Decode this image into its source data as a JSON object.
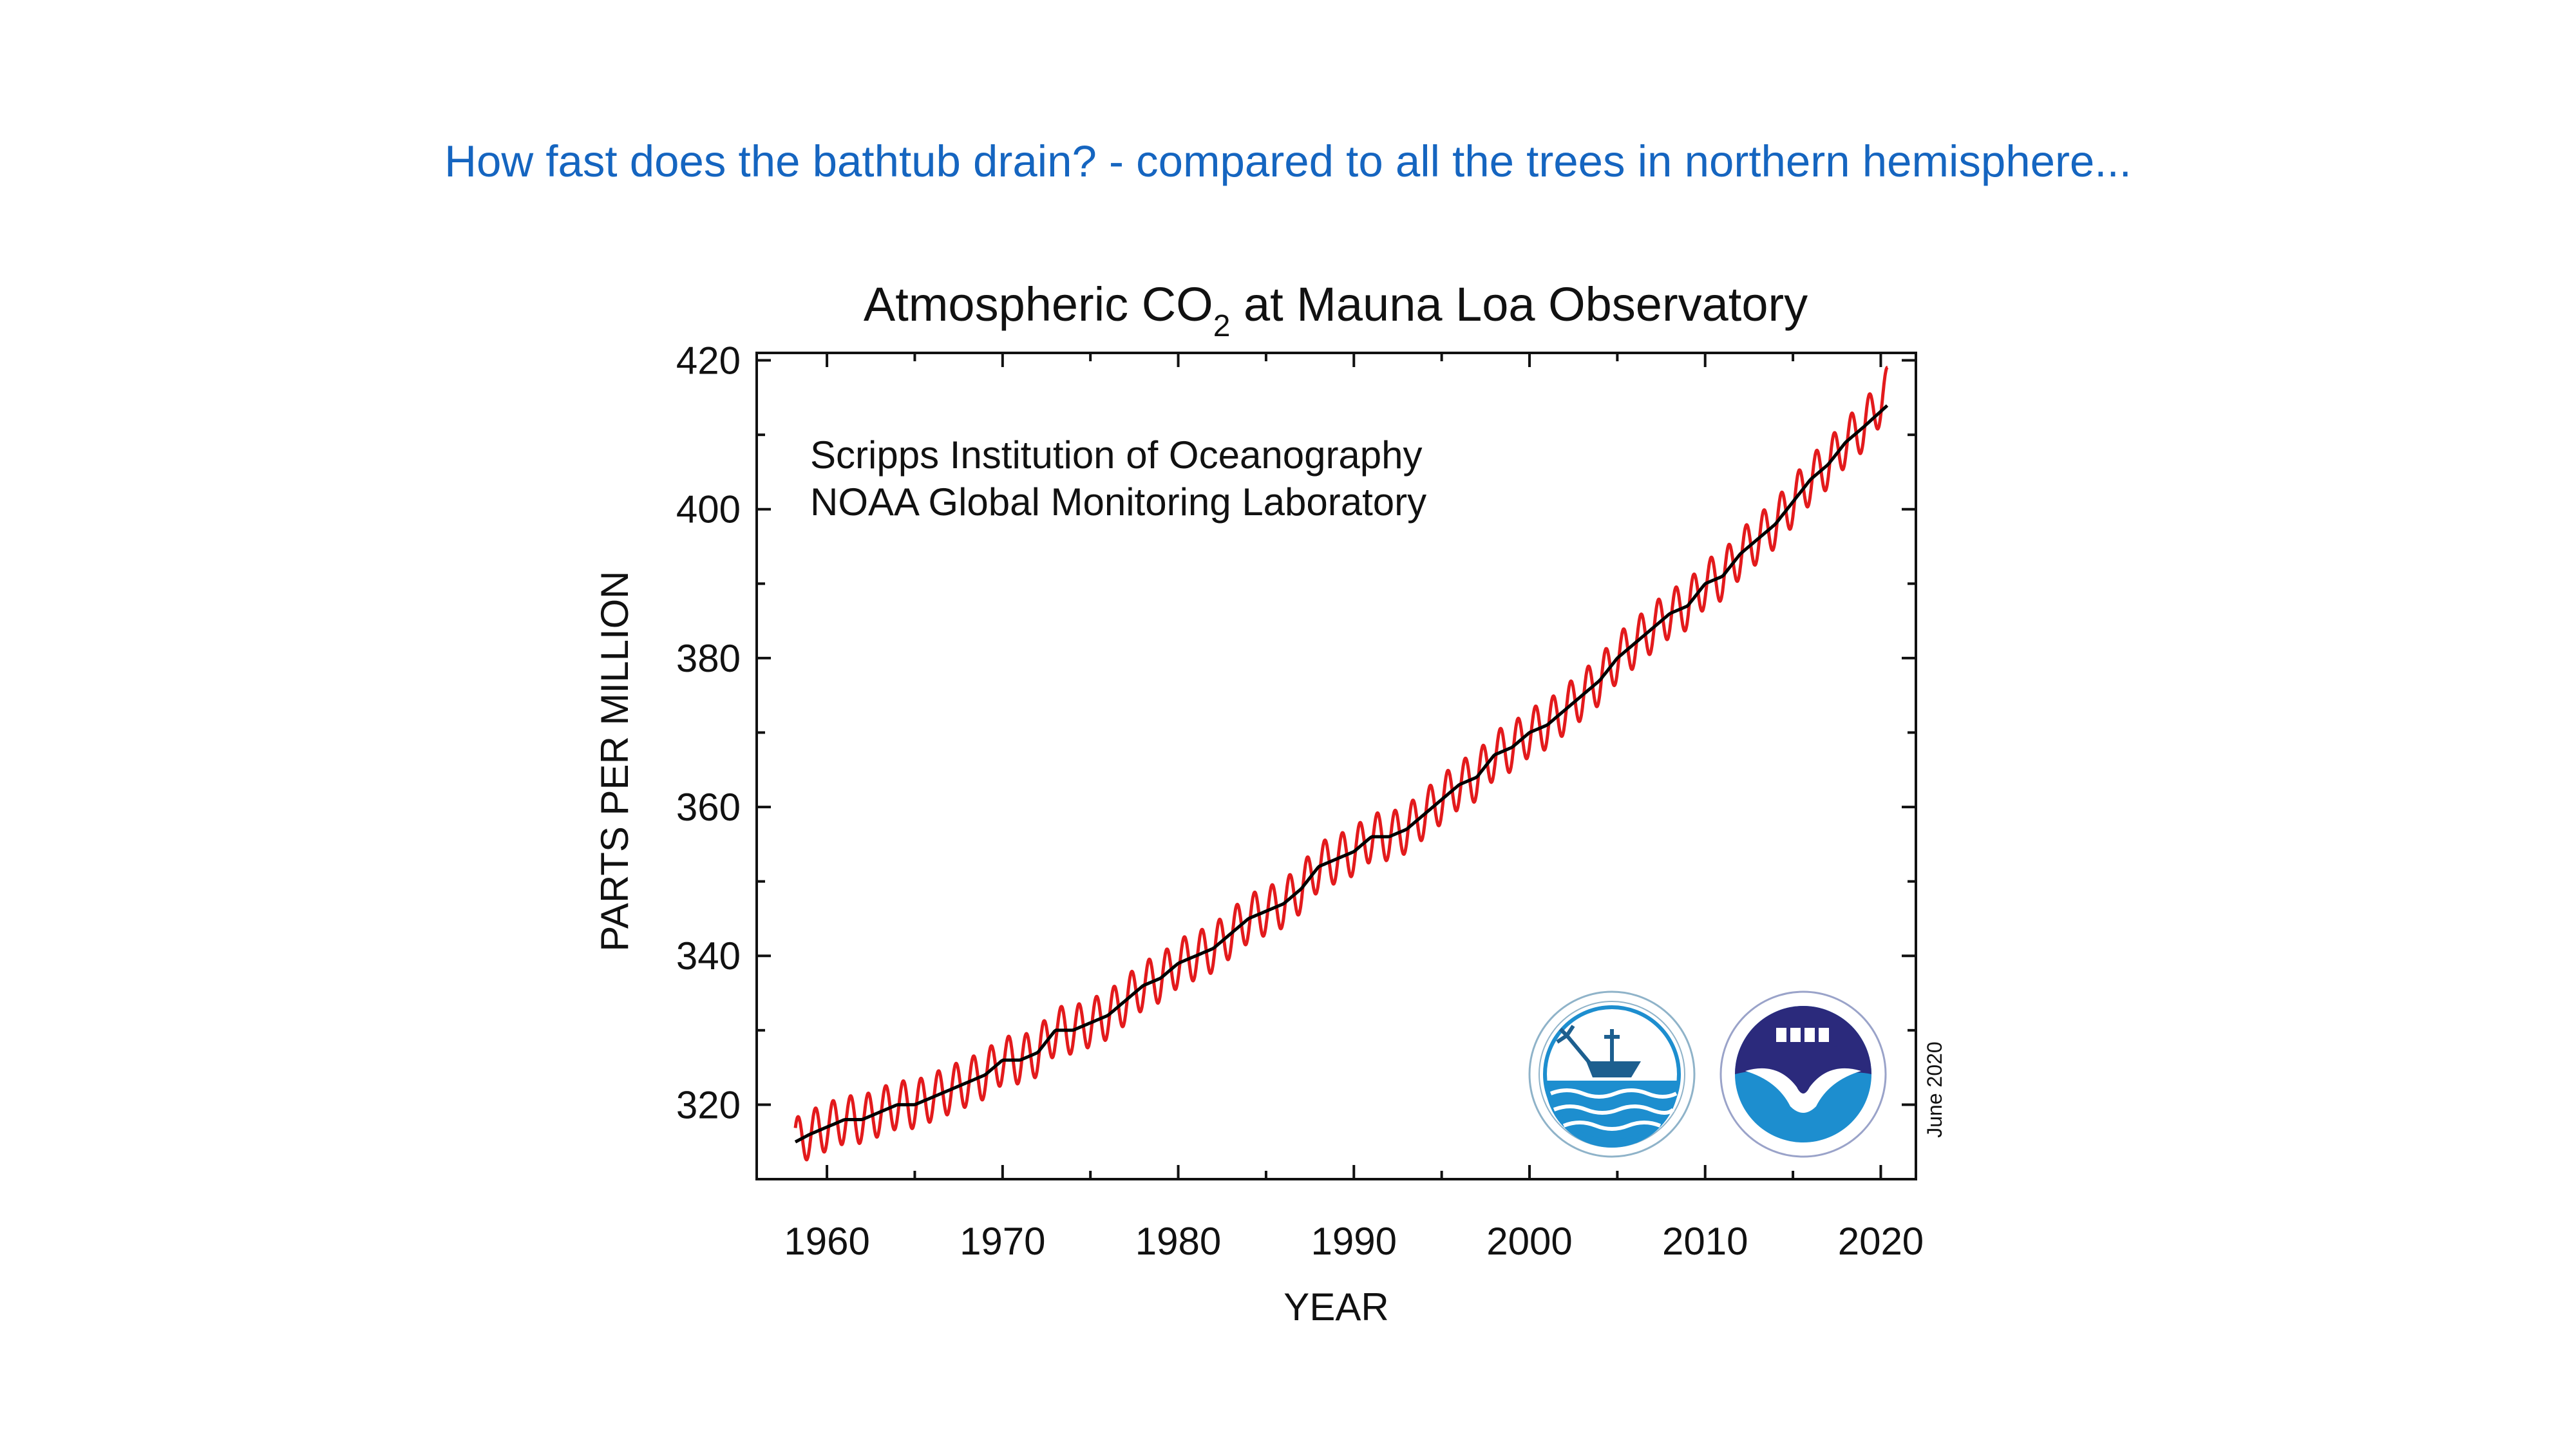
{
  "slide": {
    "heading": "How fast does the bathtub drain? - compared to all the trees in northern hemisphere..."
  },
  "colors": {
    "heading": "#1565c0",
    "monthly_series": "#e31a1c",
    "trend_series": "#000000",
    "scripps_logo": "#1d8ecf",
    "noaa_logo_top": "#2b2a7c",
    "noaa_logo_bottom": "#1d8ecf"
  },
  "icons": {
    "scripps_logo": "scripps-ucsd-seal-icon",
    "noaa_logo": "noaa-seal-icon"
  },
  "chart_data": {
    "type": "line",
    "title": "Atmospheric CO",
    "title_subscript": "2",
    "title_suffix": " at Mauna Loa Observatory",
    "ylabel": "PARTS PER MILLION",
    "xlabel": "YEAR",
    "credits": [
      "Scripps Institution of Oceanography",
      "NOAA Global Monitoring Laboratory"
    ],
    "date_note": "June 2020",
    "xlim": [
      1956,
      2022
    ],
    "ylim": [
      310,
      421
    ],
    "x_major_ticks": [
      1960,
      1970,
      1980,
      1990,
      2000,
      2010,
      2020
    ],
    "x_tick_labels": [
      "1960",
      "1970",
      "1980",
      "1990",
      "2000",
      "2010",
      "2020"
    ],
    "y_major_ticks": [
      320,
      340,
      360,
      380,
      400,
      420
    ],
    "y_tick_labels": [
      "320",
      "340",
      "360",
      "380",
      "400",
      "420"
    ],
    "grid": false,
    "legend": "none",
    "series": [
      {
        "style": "red oscillating monthly mean",
        "seasonal_amplitude_ppm": 3.2,
        "x": [
          1958.2,
          1959,
          1960,
          1961,
          1962,
          1963,
          1964,
          1965,
          1966,
          1967,
          1968,
          1969,
          1970,
          1971,
          1972,
          1973,
          1974,
          1975,
          1976,
          1977,
          1978,
          1979,
          1980,
          1981,
          1982,
          1983,
          1984,
          1985,
          1986,
          1987,
          1988,
          1989,
          1990,
          1991,
          1992,
          1993,
          1994,
          1995,
          1996,
          1997,
          1998,
          1999,
          2000,
          2001,
          2002,
          2003,
          2004,
          2005,
          2006,
          2007,
          2008,
          2009,
          2010,
          2011,
          2012,
          2013,
          2014,
          2015,
          2016,
          2017,
          2018,
          2019,
          2020.4
        ],
        "y": [
          315,
          316,
          317,
          318,
          318,
          319,
          320,
          320,
          321,
          322,
          323,
          324,
          326,
          326,
          327,
          330,
          330,
          331,
          332,
          334,
          336,
          337,
          339,
          340,
          341,
          343,
          345,
          346,
          347,
          349,
          352,
          353,
          354,
          356,
          356,
          357,
          359,
          361,
          363,
          364,
          367,
          368,
          370,
          371,
          373,
          375,
          377,
          380,
          382,
          384,
          386,
          387,
          390,
          391,
          394,
          396,
          398,
          401,
          404,
          406,
          409,
          411,
          416
        ]
      },
      {
        "style": "black seasonally corrected trend",
        "x": [
          1958.2,
          1959,
          1960,
          1961,
          1962,
          1963,
          1964,
          1965,
          1966,
          1967,
          1968,
          1969,
          1970,
          1971,
          1972,
          1973,
          1974,
          1975,
          1976,
          1977,
          1978,
          1979,
          1980,
          1981,
          1982,
          1983,
          1984,
          1985,
          1986,
          1987,
          1988,
          1989,
          1990,
          1991,
          1992,
          1993,
          1994,
          1995,
          1996,
          1997,
          1998,
          1999,
          2000,
          2001,
          2002,
          2003,
          2004,
          2005,
          2006,
          2007,
          2008,
          2009,
          2010,
          2011,
          2012,
          2013,
          2014,
          2015,
          2016,
          2017,
          2018,
          2019,
          2020.4
        ],
        "y": [
          315,
          316,
          317,
          318,
          318,
          319,
          320,
          320,
          321,
          322,
          323,
          324,
          326,
          326,
          327,
          330,
          330,
          331,
          332,
          334,
          336,
          337,
          339,
          340,
          341,
          343,
          345,
          346,
          347,
          349,
          352,
          353,
          354,
          356,
          356,
          357,
          359,
          361,
          363,
          364,
          367,
          368,
          370,
          371,
          373,
          375,
          377,
          380,
          382,
          384,
          386,
          387,
          390,
          391,
          394,
          396,
          398,
          401,
          404,
          406,
          409,
          411,
          414
        ]
      }
    ]
  }
}
